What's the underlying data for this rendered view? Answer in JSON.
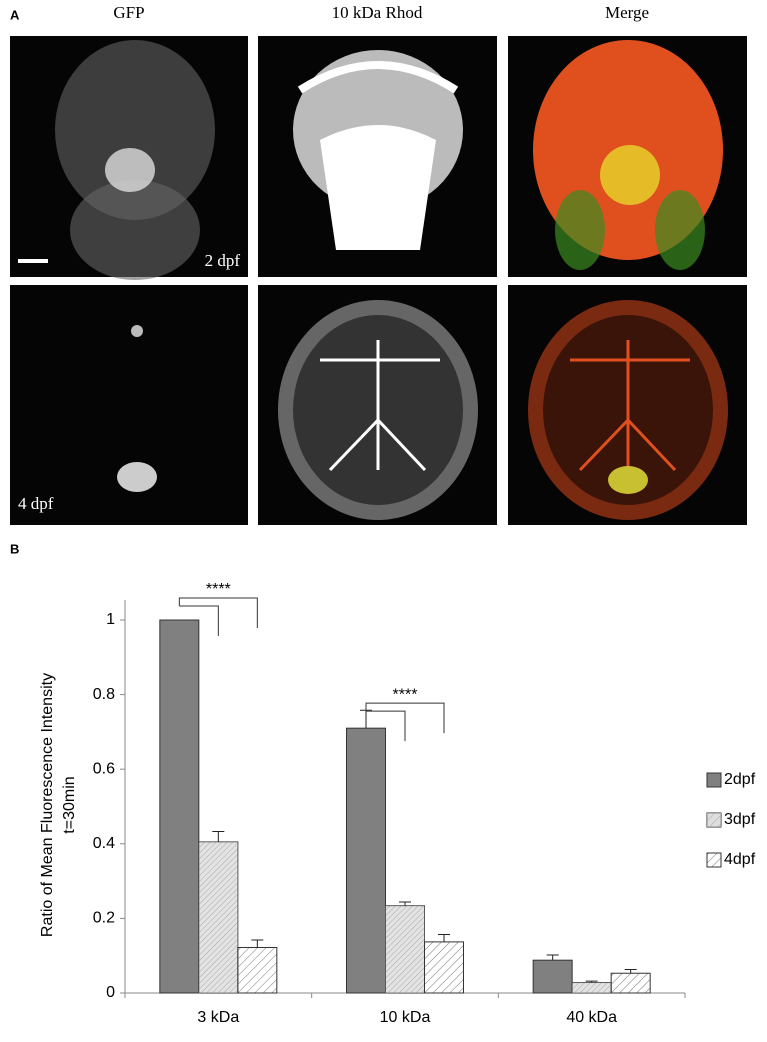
{
  "figure": {
    "panel_a": "A",
    "panel_b": "B",
    "columns": [
      "GFP",
      "10 kDa Rhod",
      "Merge"
    ],
    "rows": [
      "2 dpf",
      "4 dpf"
    ]
  },
  "chart_data": {
    "type": "bar",
    "y_label": [
      "Ratio of Mean Fluorescence Intensity",
      "t=30min"
    ],
    "categories": [
      "3 kDa",
      "10 kDa",
      "40 kDa"
    ],
    "series": [
      {
        "name": "2dpf",
        "color": "#808080",
        "hatch": false,
        "values": [
          1,
          0.71,
          0.088
        ],
        "errors": [
          null,
          0.048,
          0.014
        ]
      },
      {
        "name": "3dpf",
        "color": "#c8c8c8",
        "hatch": true,
        "values": [
          0.405,
          0.234,
          0.028
        ],
        "errors": [
          0.028,
          0.01,
          0.004
        ]
      },
      {
        "name": "4dpf",
        "color": "#ffffff",
        "hatch": true,
        "values": [
          0.122,
          0.137,
          0.053
        ],
        "errors": [
          0.02,
          0.02,
          0.01
        ]
      }
    ],
    "annotations": [
      "****",
      "****"
    ],
    "ylim": [
      0,
      1
    ],
    "yticks": [
      0,
      0.2,
      0.4,
      0.6,
      0.8,
      1
    ],
    "legend": "right"
  }
}
